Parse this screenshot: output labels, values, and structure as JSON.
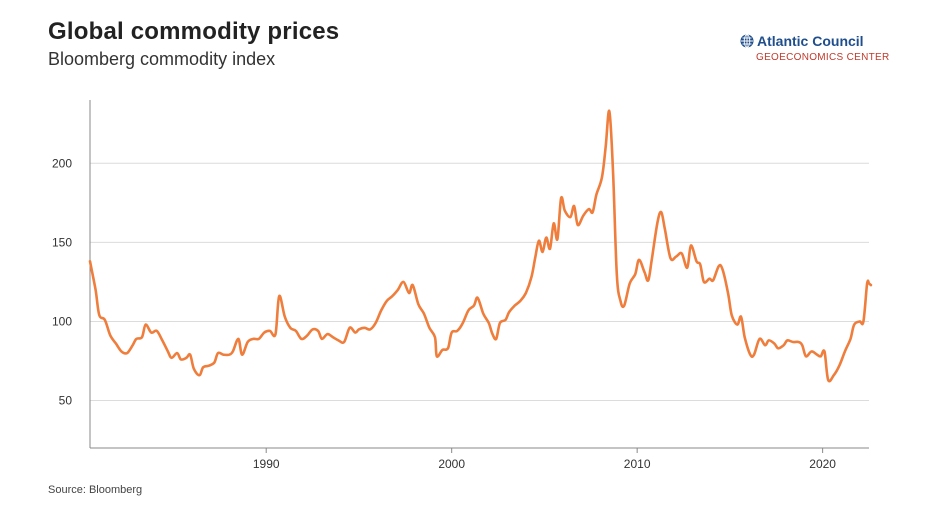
{
  "header": {
    "title": "Global commodity prices",
    "subtitle": "Bloomberg commodity index"
  },
  "logo": {
    "name": "Atlantic Council",
    "sub": "GEOECONOMICS CENTER",
    "icon": "globe-icon"
  },
  "footer": {
    "source": "Source: Bloomberg"
  },
  "colors": {
    "line": "#ef7d3c",
    "grid": "#dcdcdc",
    "axis": "#888888"
  },
  "chart_data": {
    "type": "line",
    "title": "Global commodity prices",
    "subtitle": "Bloomberg commodity index",
    "xlabel": "",
    "ylabel": "",
    "xlim": [
      1980.5,
      2022.5
    ],
    "ylim": [
      20,
      240
    ],
    "yticks": [
      50,
      100,
      150,
      200
    ],
    "xticks": [
      1990,
      2000,
      2010,
      2020
    ],
    "grid": "horizontal",
    "series": [
      {
        "values": [
          [
            1980.5,
            138
          ],
          [
            1980.8,
            120
          ],
          [
            1981.0,
            104
          ],
          [
            1981.3,
            101
          ],
          [
            1981.6,
            91
          ],
          [
            1981.9,
            86
          ],
          [
            1982.2,
            81
          ],
          [
            1982.5,
            80
          ],
          [
            1982.8,
            85
          ],
          [
            1983.0,
            89
          ],
          [
            1983.3,
            90
          ],
          [
            1983.5,
            98
          ],
          [
            1983.8,
            93
          ],
          [
            1984.1,
            94
          ],
          [
            1984.4,
            88
          ],
          [
            1984.7,
            81
          ],
          [
            1984.9,
            77
          ],
          [
            1985.2,
            80
          ],
          [
            1985.4,
            76
          ],
          [
            1985.7,
            77
          ],
          [
            1985.9,
            79
          ],
          [
            1986.1,
            70
          ],
          [
            1986.4,
            66
          ],
          [
            1986.6,
            71
          ],
          [
            1986.9,
            72
          ],
          [
            1987.2,
            74
          ],
          [
            1987.4,
            80
          ],
          [
            1987.7,
            79
          ],
          [
            1988.0,
            79
          ],
          [
            1988.2,
            81
          ],
          [
            1988.5,
            89
          ],
          [
            1988.7,
            79
          ],
          [
            1989.0,
            87
          ],
          [
            1989.3,
            89
          ],
          [
            1989.6,
            89
          ],
          [
            1989.9,
            93
          ],
          [
            1990.2,
            94
          ],
          [
            1990.5,
            92
          ],
          [
            1990.7,
            116
          ],
          [
            1991.0,
            103
          ],
          [
            1991.3,
            96
          ],
          [
            1991.6,
            94
          ],
          [
            1991.9,
            89
          ],
          [
            1992.2,
            91
          ],
          [
            1992.5,
            95
          ],
          [
            1992.8,
            94
          ],
          [
            1993.0,
            89
          ],
          [
            1993.3,
            92
          ],
          [
            1993.6,
            90
          ],
          [
            1993.9,
            88
          ],
          [
            1994.2,
            87
          ],
          [
            1994.5,
            96
          ],
          [
            1994.8,
            93
          ],
          [
            1995.0,
            95
          ],
          [
            1995.3,
            96
          ],
          [
            1995.6,
            95
          ],
          [
            1995.9,
            99
          ],
          [
            1996.2,
            107
          ],
          [
            1996.5,
            113
          ],
          [
            1996.8,
            116
          ],
          [
            1997.1,
            120
          ],
          [
            1997.4,
            125
          ],
          [
            1997.7,
            118
          ],
          [
            1997.9,
            123
          ],
          [
            1998.2,
            111
          ],
          [
            1998.5,
            105
          ],
          [
            1998.8,
            96
          ],
          [
            1999.1,
            90
          ],
          [
            1999.2,
            78
          ],
          [
            1999.5,
            82
          ],
          [
            1999.8,
            83
          ],
          [
            2000.0,
            93
          ],
          [
            2000.3,
            94
          ],
          [
            2000.6,
            99
          ],
          [
            2000.9,
            107
          ],
          [
            2001.2,
            110
          ],
          [
            2001.4,
            115
          ],
          [
            2001.7,
            105
          ],
          [
            2002.0,
            99
          ],
          [
            2002.2,
            92
          ],
          [
            2002.4,
            89
          ],
          [
            2002.6,
            99
          ],
          [
            2002.9,
            101
          ],
          [
            2003.1,
            106
          ],
          [
            2003.4,
            110
          ],
          [
            2003.7,
            113
          ],
          [
            2004.0,
            118
          ],
          [
            2004.3,
            128
          ],
          [
            2004.5,
            140
          ],
          [
            2004.7,
            151
          ],
          [
            2004.9,
            144
          ],
          [
            2005.1,
            153
          ],
          [
            2005.3,
            146
          ],
          [
            2005.5,
            162
          ],
          [
            2005.7,
            152
          ],
          [
            2005.9,
            178
          ],
          [
            2006.1,
            170
          ],
          [
            2006.4,
            166
          ],
          [
            2006.6,
            173
          ],
          [
            2006.8,
            161
          ],
          [
            2007.1,
            167
          ],
          [
            2007.4,
            171
          ],
          [
            2007.6,
            169
          ],
          [
            2007.8,
            180
          ],
          [
            2008.1,
            191
          ],
          [
            2008.3,
            210
          ],
          [
            2008.5,
            233
          ],
          [
            2008.7,
            195
          ],
          [
            2008.9,
            130
          ],
          [
            2009.1,
            113
          ],
          [
            2009.3,
            110
          ],
          [
            2009.6,
            124
          ],
          [
            2009.9,
            130
          ],
          [
            2010.1,
            139
          ],
          [
            2010.4,
            131
          ],
          [
            2010.6,
            126
          ],
          [
            2010.8,
            140
          ],
          [
            2011.1,
            163
          ],
          [
            2011.3,
            169
          ],
          [
            2011.5,
            158
          ],
          [
            2011.8,
            140
          ],
          [
            2012.1,
            141
          ],
          [
            2012.4,
            143
          ],
          [
            2012.7,
            134
          ],
          [
            2012.9,
            148
          ],
          [
            2013.2,
            138
          ],
          [
            2013.4,
            136
          ],
          [
            2013.6,
            125
          ],
          [
            2013.9,
            127
          ],
          [
            2014.1,
            126
          ],
          [
            2014.4,
            135
          ],
          [
            2014.6,
            133
          ],
          [
            2014.9,
            118
          ],
          [
            2015.1,
            104
          ],
          [
            2015.4,
            98
          ],
          [
            2015.6,
            103
          ],
          [
            2015.8,
            90
          ],
          [
            2016.1,
            79
          ],
          [
            2016.3,
            79
          ],
          [
            2016.6,
            89
          ],
          [
            2016.9,
            85
          ],
          [
            2017.1,
            88
          ],
          [
            2017.4,
            86
          ],
          [
            2017.6,
            83
          ],
          [
            2017.9,
            85
          ],
          [
            2018.1,
            88
          ],
          [
            2018.4,
            87
          ],
          [
            2018.7,
            87
          ],
          [
            2018.9,
            85
          ],
          [
            2019.1,
            78
          ],
          [
            2019.4,
            81
          ],
          [
            2019.7,
            79
          ],
          [
            2019.9,
            78
          ],
          [
            2020.1,
            81
          ],
          [
            2020.3,
            63
          ],
          [
            2020.6,
            66
          ],
          [
            2020.9,
            72
          ],
          [
            2021.2,
            81
          ],
          [
            2021.5,
            89
          ],
          [
            2021.7,
            98
          ],
          [
            2022.0,
            100
          ],
          [
            2022.2,
            100
          ],
          [
            2022.4,
            124
          ],
          [
            2022.5,
            124
          ],
          [
            2022.6,
            123
          ]
        ]
      }
    ]
  }
}
